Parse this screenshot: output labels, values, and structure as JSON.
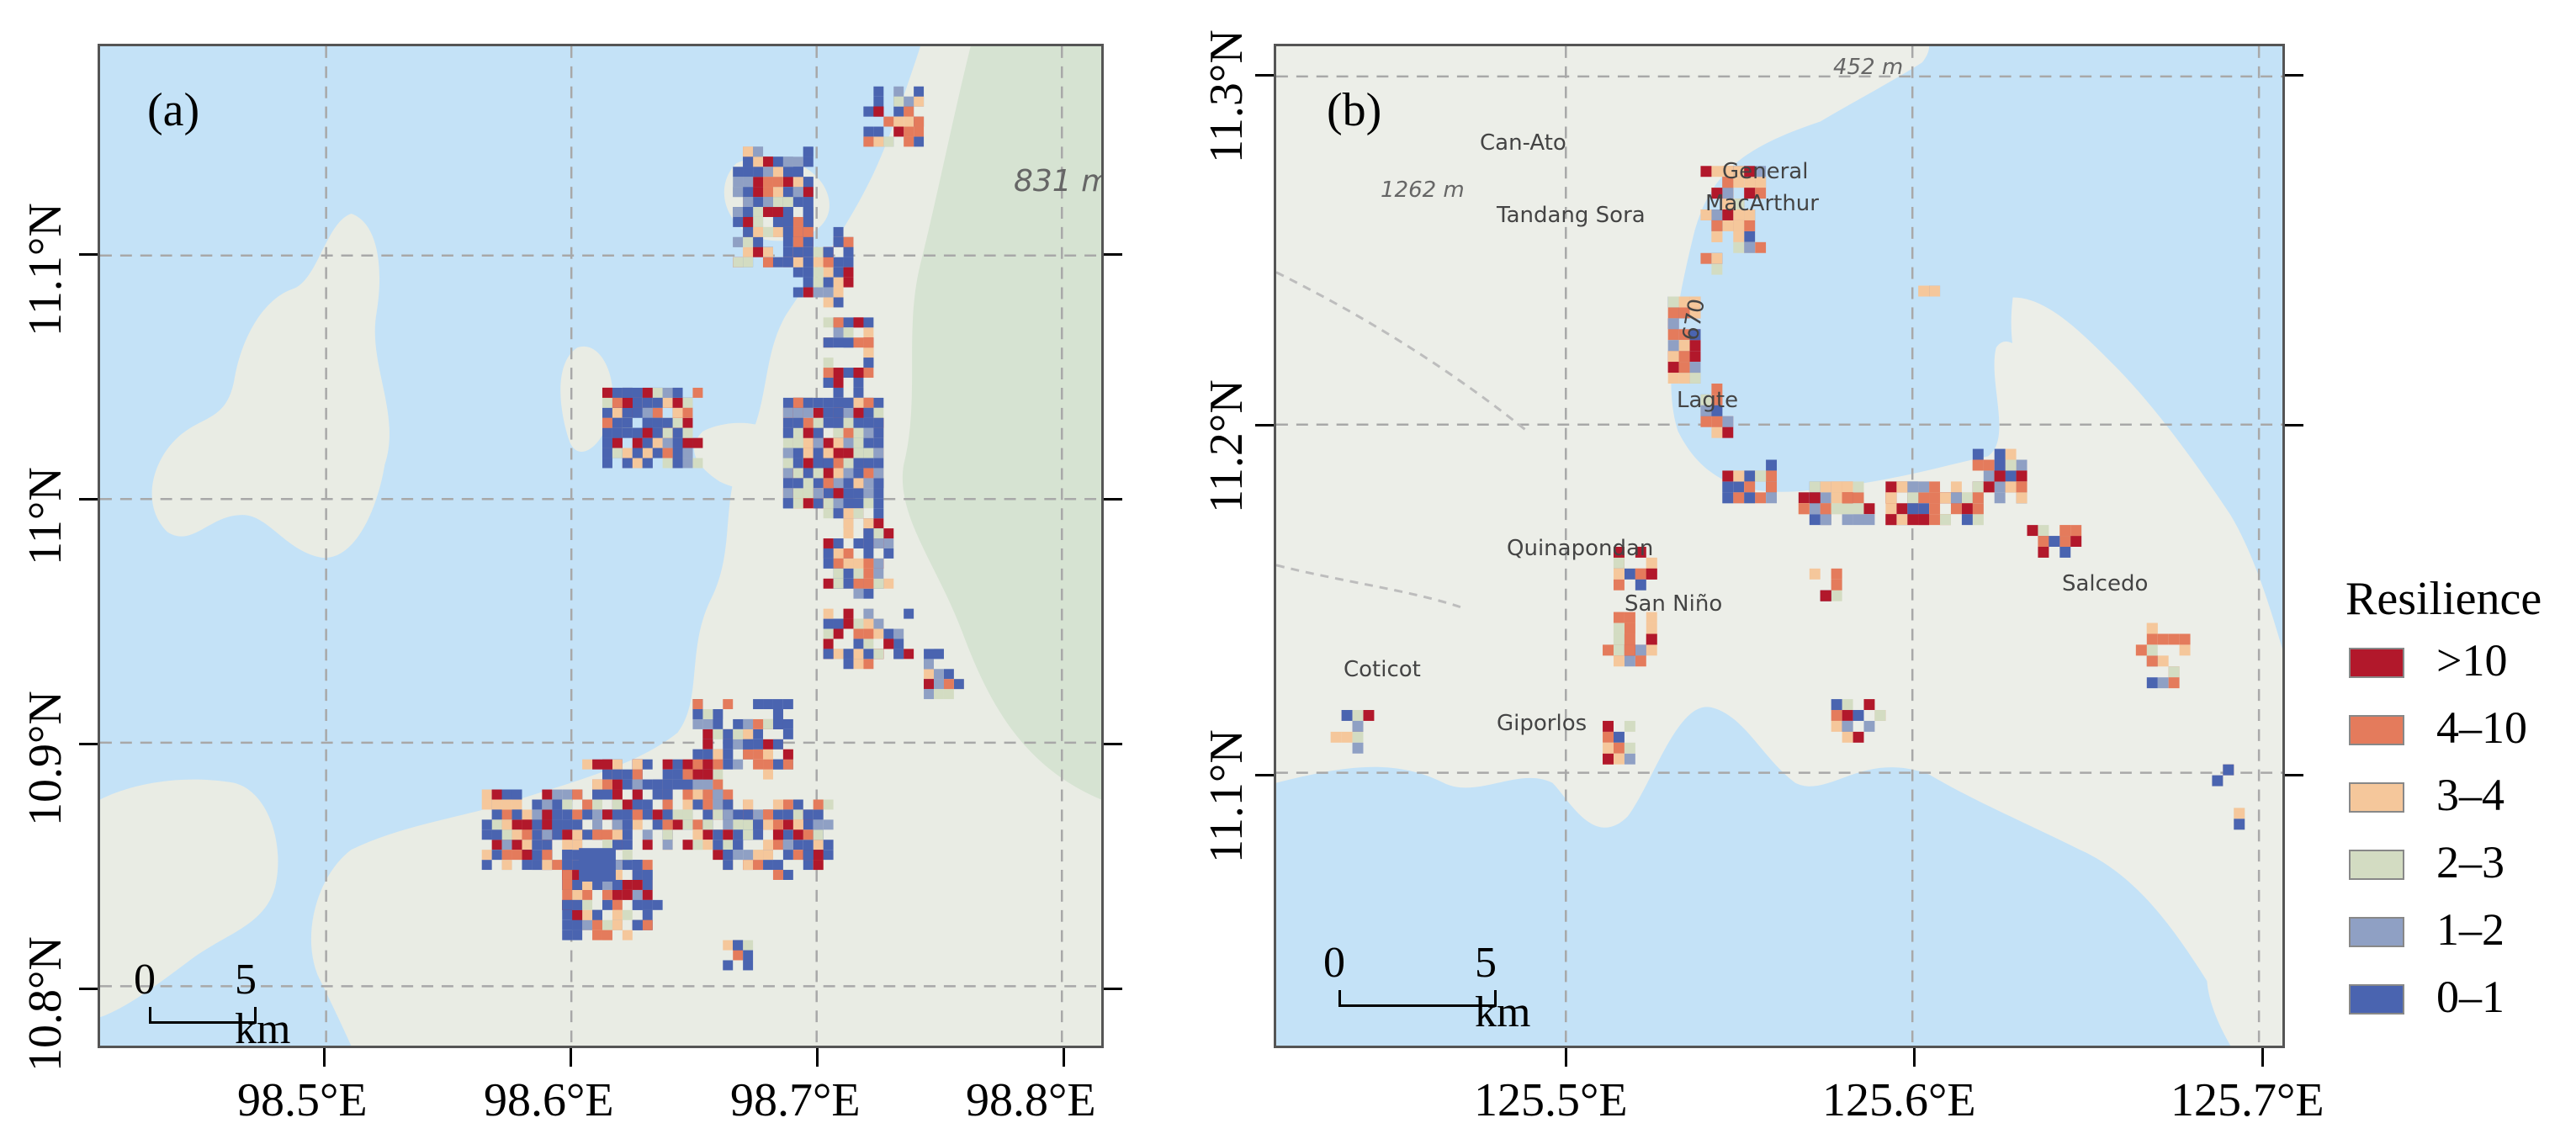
{
  "colors": {
    "water": "#c4e2f7",
    "land": "#e9ece4",
    "grid": "#a8a8a8",
    "res_gt10": "#b2182b",
    "res_4_10": "#e47b5c",
    "res_3_4": "#f5c79b",
    "res_2_3": "#d3dcc2",
    "res_1_2": "#8fa0c4",
    "res_0_1": "#4a64b0"
  },
  "panels": [
    {
      "id": "a",
      "letter": "(a)",
      "lon_ticks": [
        "98.5°E",
        "98.6°E",
        "98.7°E",
        "98.8°E"
      ],
      "lat_ticks": [
        "11.1°N",
        "11°N",
        "10.9°N",
        "10.8°N"
      ],
      "scale": {
        "start": "0",
        "end": "5 km"
      },
      "map_labels": [
        {
          "text": "831 m",
          "kind": "elev"
        }
      ]
    },
    {
      "id": "b",
      "letter": "(b)",
      "lon_ticks": [
        "125.5°E",
        "125.6°E",
        "125.7°E"
      ],
      "lat_ticks": [
        "11.3°N",
        "11.2°N",
        "11.1°N"
      ],
      "scale": {
        "start": "0",
        "end": "5 km"
      },
      "map_labels": [
        {
          "text": "452 m",
          "kind": "elev"
        },
        {
          "text": "Can-Ato",
          "kind": "place"
        },
        {
          "text": "1262 m",
          "kind": "elev"
        },
        {
          "text": "General",
          "kind": "place"
        },
        {
          "text": "MacArthur",
          "kind": "place"
        },
        {
          "text": "Tandang Sora",
          "kind": "place"
        },
        {
          "text": "670",
          "kind": "place"
        },
        {
          "text": "Lagte",
          "kind": "place"
        },
        {
          "text": "Quinapondan",
          "kind": "place"
        },
        {
          "text": "San Niño",
          "kind": "place"
        },
        {
          "text": "Salcedo",
          "kind": "place"
        },
        {
          "text": "Coticot",
          "kind": "place"
        },
        {
          "text": "Giporlos",
          "kind": "place"
        }
      ]
    }
  ],
  "legend": {
    "title": "Resilience",
    "items": [
      {
        "label": ">10",
        "color": "#b2182b"
      },
      {
        "label": "4–10",
        "color": "#e47b5c"
      },
      {
        "label": "3–4",
        "color": "#f5c79b"
      },
      {
        "label": "2–3",
        "color": "#d3dcc2"
      },
      {
        "label": "1–2",
        "color": "#8fa0c4"
      },
      {
        "label": "0–1",
        "color": "#4a64b0"
      }
    ]
  }
}
